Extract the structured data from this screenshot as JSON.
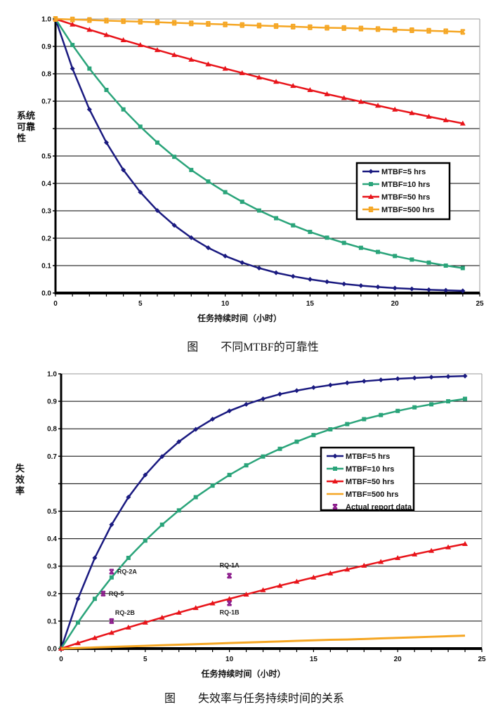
{
  "chart_data": [
    {
      "type": "line",
      "caption": "图　　不同MTBF的可靠性",
      "xlabel": "任务持续时间（小时）",
      "ylabel": "系统可靠性",
      "xlim": [
        0,
        25
      ],
      "ylim": [
        0,
        1.0
      ],
      "x_ticks": [
        "0",
        "5",
        "10",
        "15",
        "20",
        "25"
      ],
      "y_ticks": [
        "0.0",
        "0.1",
        "0.2",
        "0.3",
        "0.4",
        "0.5",
        "",
        "0.7",
        "0.8",
        "0.9",
        "1.0"
      ],
      "grid": true,
      "legend": "right-middle",
      "x": [
        0,
        1,
        2,
        3,
        4,
        5,
        6,
        7,
        8,
        9,
        10,
        11,
        12,
        13,
        14,
        15,
        16,
        17,
        18,
        19,
        20,
        21,
        22,
        23,
        24
      ],
      "series": [
        {
          "name": "MTBF=5 hrs",
          "color": "#1a1a80",
          "marker": "diamond",
          "values": [
            1,
            0.819,
            0.67,
            0.549,
            0.449,
            0.368,
            0.301,
            0.247,
            0.202,
            0.165,
            0.135,
            0.111,
            0.091,
            0.074,
            0.061,
            0.05,
            0.041,
            0.033,
            0.027,
            0.022,
            0.018,
            0.015,
            0.012,
            0.01,
            0.008
          ]
        },
        {
          "name": "MTBF=10 hrs",
          "color": "#2aa47a",
          "marker": "square",
          "values": [
            1,
            0.905,
            0.819,
            0.741,
            0.67,
            0.607,
            0.549,
            0.497,
            0.449,
            0.407,
            0.368,
            0.333,
            0.301,
            0.273,
            0.247,
            0.223,
            0.202,
            0.183,
            0.165,
            0.15,
            0.135,
            0.122,
            0.111,
            0.1,
            0.091
          ]
        },
        {
          "name": "MTBF=50 hrs",
          "color": "#e8141a",
          "marker": "triangle",
          "values": [
            1,
            0.98,
            0.961,
            0.942,
            0.923,
            0.905,
            0.887,
            0.869,
            0.852,
            0.835,
            0.819,
            0.803,
            0.787,
            0.771,
            0.756,
            0.741,
            0.726,
            0.712,
            0.698,
            0.684,
            0.67,
            0.657,
            0.644,
            0.631,
            0.619
          ]
        },
        {
          "name": "MTBF=500 hrs",
          "color": "#f5a623",
          "marker": "x",
          "values": [
            1,
            0.998,
            0.996,
            0.994,
            0.992,
            0.99,
            0.988,
            0.986,
            0.984,
            0.982,
            0.98,
            0.978,
            0.976,
            0.974,
            0.972,
            0.97,
            0.968,
            0.967,
            0.965,
            0.963,
            0.961,
            0.959,
            0.957,
            0.955,
            0.953
          ]
        }
      ]
    },
    {
      "type": "line",
      "caption": "图　　失效率与任务持续时间的关系",
      "xlabel": "任务持续时间（小时）",
      "ylabel": "失效率",
      "xlim": [
        0,
        25
      ],
      "ylim": [
        0,
        1.0
      ],
      "x_ticks": [
        "0",
        "5",
        "10",
        "15",
        "20",
        "25"
      ],
      "y_ticks": [
        "0.0",
        "0.1",
        "0.2",
        "0.3",
        "0.4",
        "0.5",
        "",
        "0.7",
        "0.8",
        "0.9",
        "1.0"
      ],
      "grid": true,
      "legend": "right-middle",
      "x": [
        0,
        1,
        2,
        3,
        4,
        5,
        6,
        7,
        8,
        9,
        10,
        11,
        12,
        13,
        14,
        15,
        16,
        17,
        18,
        19,
        20,
        21,
        22,
        23,
        24
      ],
      "series": [
        {
          "name": "MTBF=5 hrs",
          "color": "#1a1a80",
          "marker": "diamond",
          "values": [
            0,
            0.181,
            0.33,
            0.451,
            0.551,
            0.632,
            0.699,
            0.753,
            0.798,
            0.835,
            0.865,
            0.889,
            0.909,
            0.926,
            0.939,
            0.95,
            0.959,
            0.967,
            0.973,
            0.978,
            0.982,
            0.985,
            0.988,
            0.99,
            0.992
          ]
        },
        {
          "name": "MTBF=10 hrs",
          "color": "#2aa47a",
          "marker": "square",
          "values": [
            0,
            0.095,
            0.181,
            0.259,
            0.33,
            0.393,
            0.451,
            0.503,
            0.551,
            0.593,
            0.632,
            0.667,
            0.699,
            0.727,
            0.753,
            0.777,
            0.798,
            0.817,
            0.835,
            0.85,
            0.865,
            0.878,
            0.889,
            0.9,
            0.909
          ]
        },
        {
          "name": "MTBF=50 hrs",
          "color": "#e8141a",
          "marker": "triangle",
          "values": [
            0,
            0.02,
            0.039,
            0.058,
            0.077,
            0.095,
            0.113,
            0.131,
            0.148,
            0.165,
            0.181,
            0.197,
            0.213,
            0.229,
            0.244,
            0.259,
            0.274,
            0.288,
            0.302,
            0.316,
            0.33,
            0.343,
            0.356,
            0.369,
            0.381
          ]
        },
        {
          "name": "MTBF=500 hrs",
          "color": "#f5a623",
          "marker": "none",
          "values": [
            0,
            0.002,
            0.004,
            0.006,
            0.008,
            0.01,
            0.012,
            0.014,
            0.016,
            0.018,
            0.02,
            0.022,
            0.024,
            0.026,
            0.028,
            0.03,
            0.032,
            0.033,
            0.035,
            0.037,
            0.039,
            0.041,
            0.043,
            0.045,
            0.047
          ]
        }
      ],
      "points": {
        "name": "Actual report data",
        "color": "#8b1a8b",
        "marker": "x",
        "items": [
          {
            "label": "RQ-2A",
            "x": 3,
            "y": 0.28
          },
          {
            "label": "RQ-5",
            "x": 2.5,
            "y": 0.2
          },
          {
            "label": "RQ-2B",
            "x": 3,
            "y": 0.1
          },
          {
            "label": "RQ-1A",
            "x": 10,
            "y": 0.265
          },
          {
            "label": "RQ-1B",
            "x": 10,
            "y": 0.165
          }
        ]
      }
    }
  ]
}
